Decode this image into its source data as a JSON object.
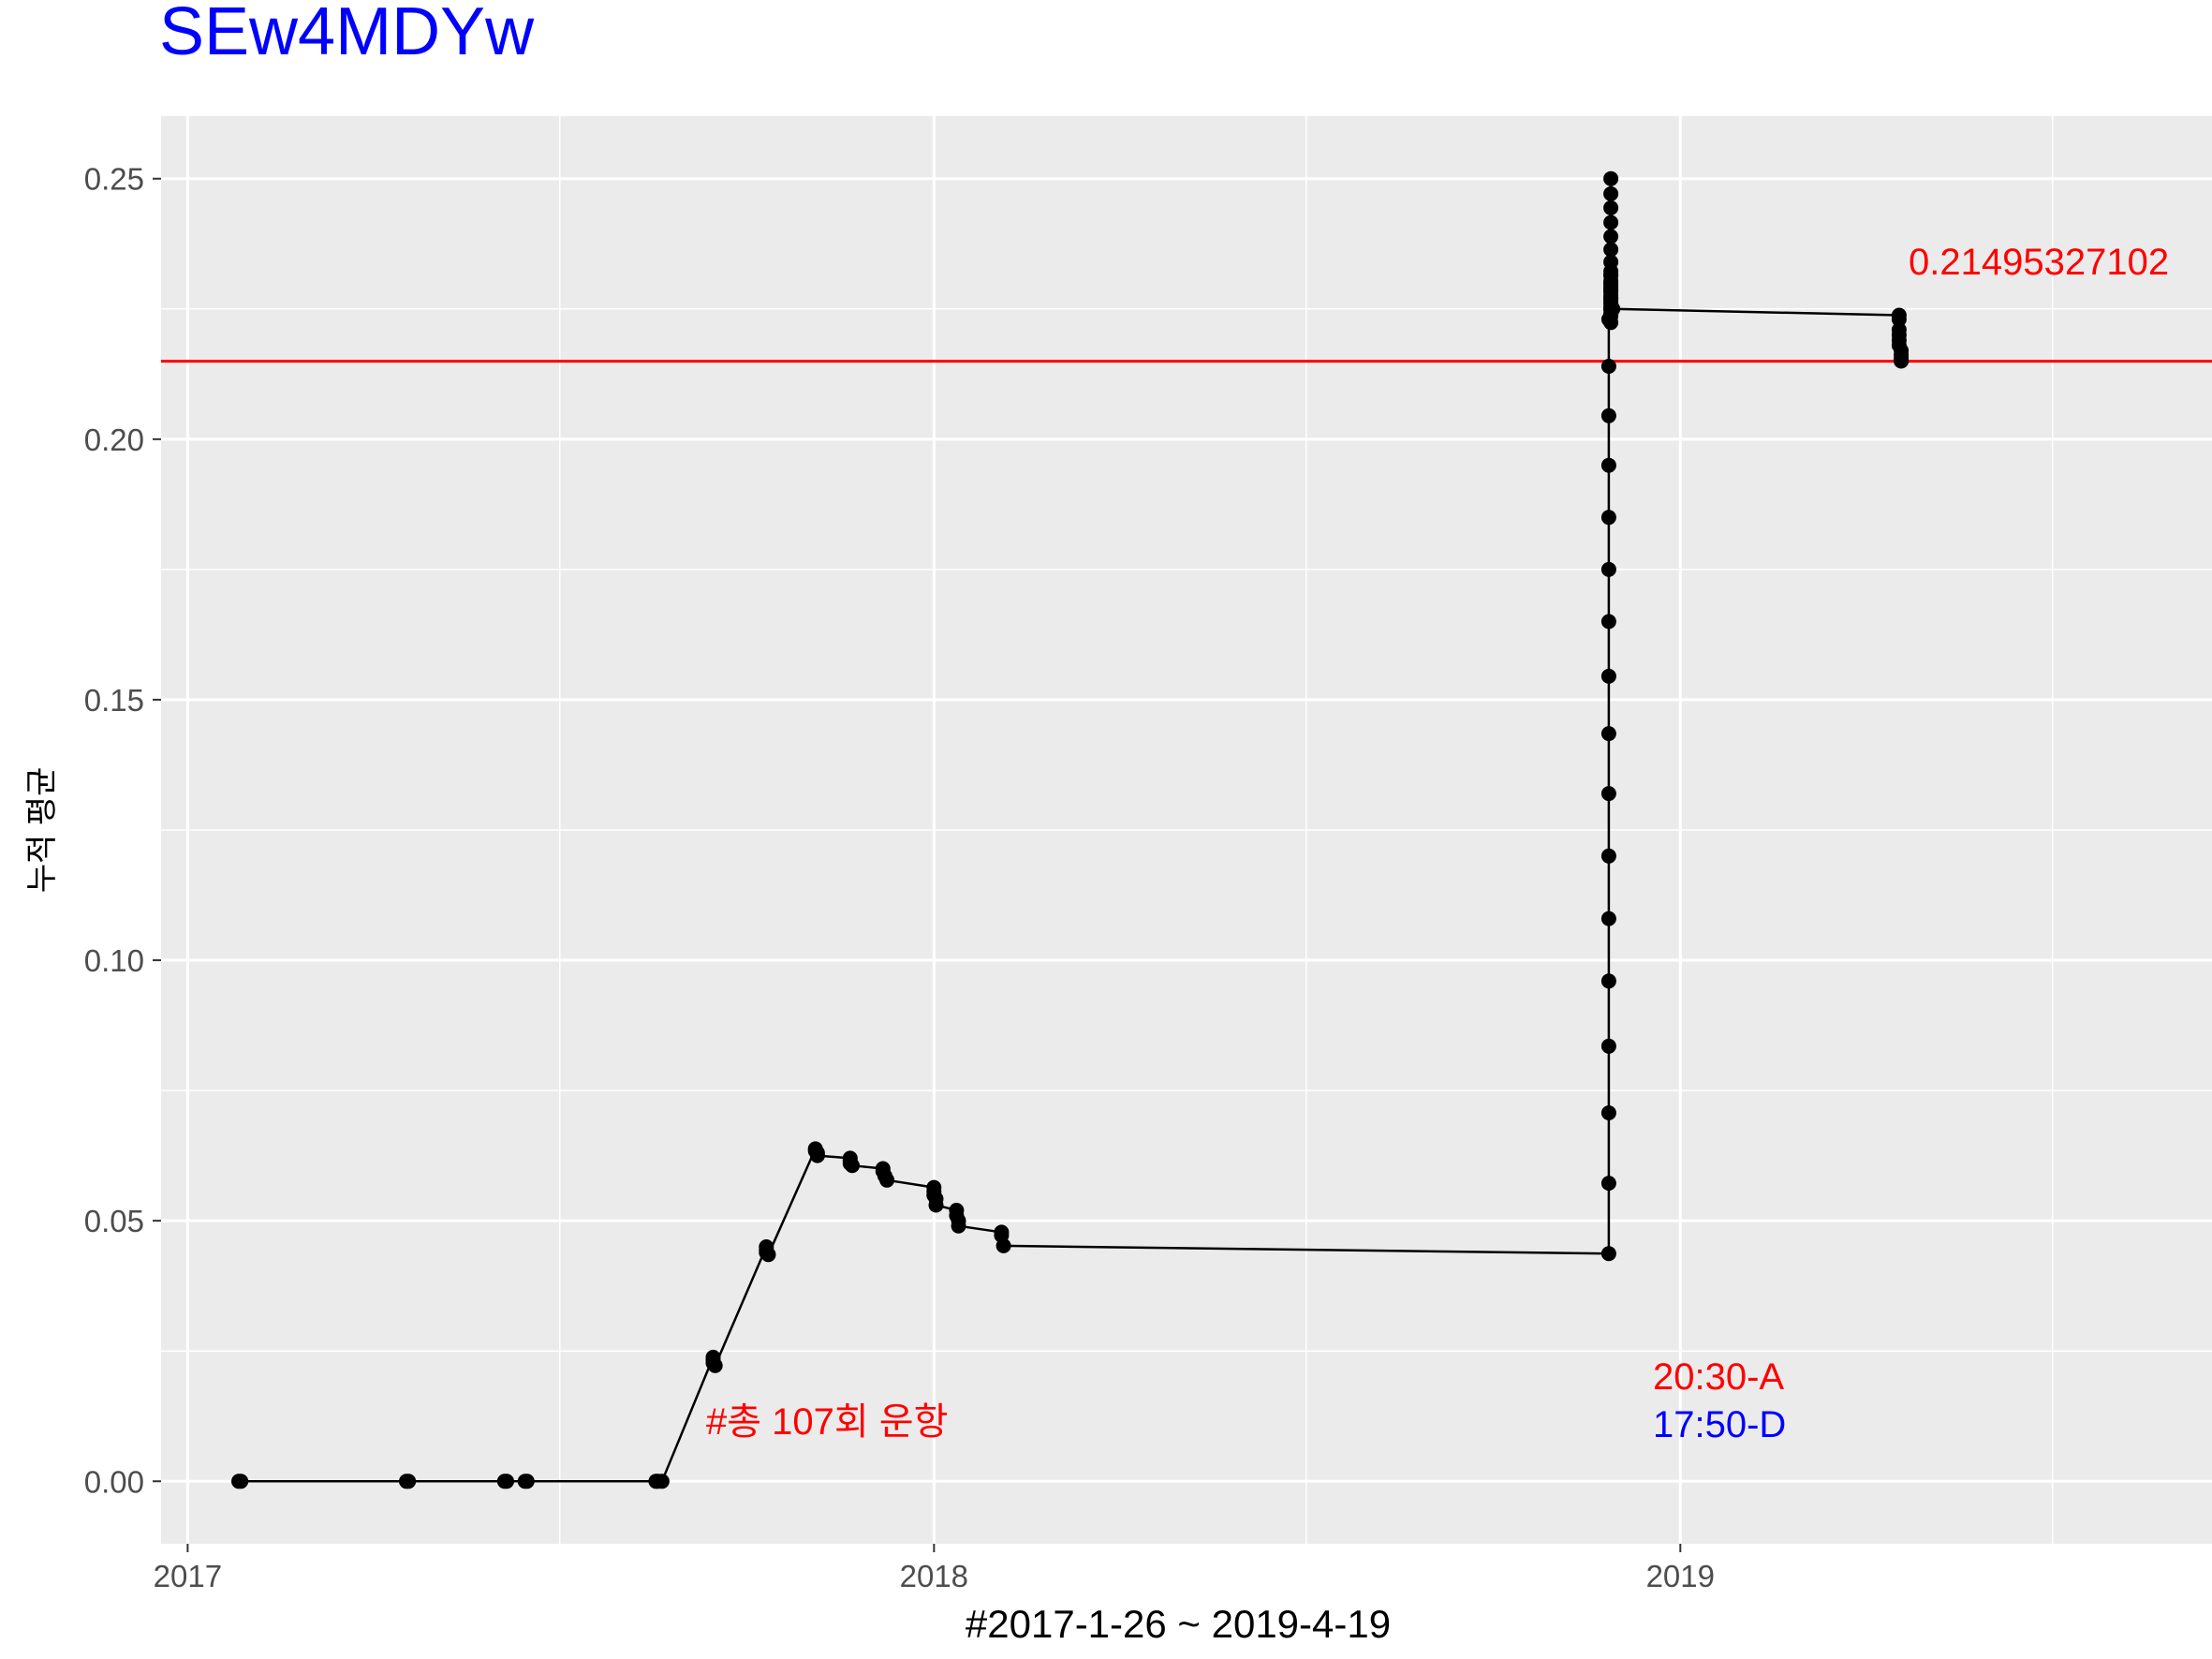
{
  "chart_data": {
    "type": "line",
    "title": "SEw4MDYw",
    "xlabel": "#2017-1-26 ~ 2019-4-19",
    "ylabel": "누적 평균",
    "x_ticks": [
      "2017",
      "2018",
      "2019"
    ],
    "y_ticks": [
      "0.00",
      "0.05",
      "0.10",
      "0.15",
      "0.20",
      "0.25"
    ],
    "xlim": [
      "2016-12-19",
      "2019-09-18"
    ],
    "ylim": [
      -0.012,
      0.262
    ],
    "grid": true,
    "hline": {
      "value": 0.214953271,
      "color": "#ff0000"
    },
    "annotations": {
      "hline_label": "0.21495327102",
      "count_label": "#총 107회 운항",
      "time_a": "20:30-A",
      "time_d": "17:50-D"
    },
    "colors": {
      "title": "#0000ff",
      "hline": "#ff0000",
      "count_label": "#ff0000",
      "time_a": "#ff0000",
      "time_d": "#0000ff",
      "line": "#000000",
      "panel": "#ebebeb",
      "grid": "#ffffff"
    },
    "series": [
      {
        "x": [
          "2017-01-26",
          "2017-01-27",
          "2017-04-18",
          "2017-04-19",
          "2017-06-05",
          "2017-06-06",
          "2017-06-15",
          "2017-06-16",
          "2017-08-18",
          "2017-08-19",
          "2017-08-21",
          "2017-09-15",
          "2017-09-15",
          "2017-09-15",
          "2017-09-16",
          "2017-10-11",
          "2017-10-11",
          "2017-10-11",
          "2017-10-12",
          "2017-11-04",
          "2017-11-04",
          "2017-11-05",
          "2017-11-05",
          "2017-11-21",
          "2017-11-21",
          "2017-11-21",
          "2017-11-22",
          "2017-12-07",
          "2017-12-07",
          "2017-12-08",
          "2017-12-09",
          "2018-01-01",
          "2018-01-01",
          "2018-01-01",
          "2018-01-02",
          "2018-01-02",
          "2018-01-12",
          "2018-01-12",
          "2018-01-13",
          "2018-01-13",
          "2018-02-03",
          "2018-02-03",
          "2018-02-04",
          "2018-11-27",
          "2018-11-27",
          "2018-11-27",
          "2018-11-27",
          "2018-11-27",
          "2018-11-27",
          "2018-11-27",
          "2018-11-27",
          "2018-11-27",
          "2018-11-27",
          "2018-11-27",
          "2018-11-27",
          "2018-11-27",
          "2018-11-27",
          "2018-11-27",
          "2018-11-27",
          "2018-11-27",
          "2018-11-28",
          "2018-11-28",
          "2018-11-28",
          "2018-11-28",
          "2018-11-28",
          "2018-11-28",
          "2018-11-28",
          "2018-11-28",
          "2018-11-28",
          "2018-11-28",
          "2018-11-28",
          "2018-11-28",
          "2018-11-28",
          "2018-11-28",
          "2018-11-28",
          "2018-11-28",
          "2018-11-28",
          "2018-11-28",
          "2018-11-28",
          "2018-11-28",
          "2018-11-28",
          "2018-11-28",
          "2018-11-28",
          "2018-11-28",
          "2018-11-28",
          "2018-11-28",
          "2018-11-28",
          "2018-11-28",
          "2018-11-28",
          "2018-11-28",
          "2018-11-28",
          "2018-11-28",
          "2018-11-28",
          "2018-11-28",
          "2018-11-29",
          "2019-04-18",
          "2019-04-18",
          "2019-04-18",
          "2019-04-18",
          "2019-04-18",
          "2019-04-18",
          "2019-04-19",
          "2019-04-19",
          "2019-04-19",
          "2019-04-19",
          "2019-04-19",
          "2019-04-19"
        ],
        "values": [
          0,
          0,
          0,
          0,
          0,
          0,
          0,
          0,
          0,
          0,
          0,
          0.0238,
          0.0233,
          0.0227,
          0.0222,
          0.045,
          0.0444,
          0.0439,
          0.0435,
          0.0638,
          0.0634,
          0.063,
          0.0625,
          0.062,
          0.0615,
          0.061,
          0.0606,
          0.06,
          0.0595,
          0.0586,
          0.0578,
          0.0564,
          0.0556,
          0.0549,
          0.0542,
          0.053,
          0.052,
          0.051,
          0.05,
          0.049,
          0.0478,
          0.0472,
          0.0452,
          0.0437,
          0.0572,
          0.0707,
          0.0835,
          0.096,
          0.108,
          0.12,
          0.132,
          0.1435,
          0.1545,
          0.165,
          0.175,
          0.185,
          0.195,
          0.2045,
          0.214,
          0.223,
          0.25,
          0.2471,
          0.2444,
          0.2416,
          0.2389,
          0.2364,
          0.234,
          0.2316,
          0.2293,
          0.2271,
          0.225,
          0.2236,
          0.2224,
          0.2322,
          0.2304,
          0.2286,
          0.227,
          0.2254,
          0.224,
          0.2314,
          0.2298,
          0.2282,
          0.2266,
          0.2252,
          0.224,
          0.23,
          0.2286,
          0.2272,
          0.226,
          0.2248,
          0.2238,
          0.229,
          0.2276,
          0.2262,
          0.225,
          0.2238,
          0.223,
          0.221,
          0.22,
          0.219,
          0.218,
          0.217,
          0.2162,
          0.2155,
          0.2152,
          0.215,
          0.215
        ]
      }
    ]
  }
}
